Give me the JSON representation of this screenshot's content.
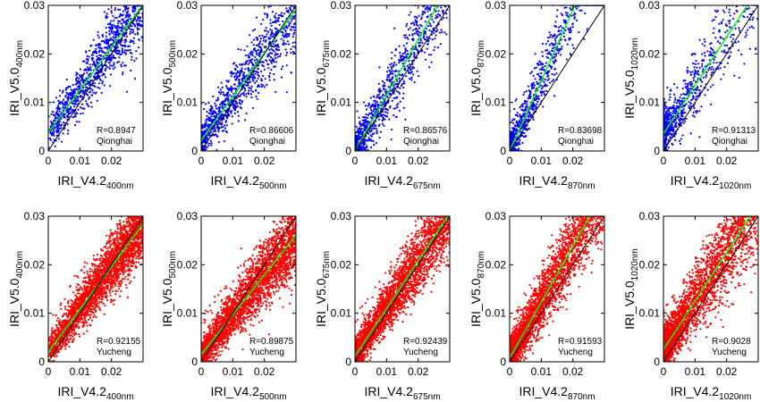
{
  "figure": {
    "panels": [
      {
        "title": "",
        "xlabel_main": "IRI_V4.2",
        "xlabel_sub": "400nm",
        "ylabel_main": "IRI_V5.0",
        "ylabel_sub": "400nm",
        "r_text": "R=0.8947",
        "site": "Qionghai",
        "color": "#0000ff"
      },
      {
        "title": "",
        "xlabel_main": "IRI_V4.2",
        "xlabel_sub": "500nm",
        "ylabel_main": "IRI_V5.0",
        "ylabel_sub": "500nm",
        "r_text": "R=0.86606",
        "site": "Qionghai",
        "color": "#0000ff"
      },
      {
        "title": "",
        "xlabel_main": "IRI_V4.2",
        "xlabel_sub": "675nm",
        "ylabel_main": "IRI_V5.0",
        "ylabel_sub": "675nm",
        "r_text": "R=0.86576",
        "site": "Qionghai",
        "color": "#0000ff"
      },
      {
        "title": "",
        "xlabel_main": "IRI_V4.2",
        "xlabel_sub": "870nm",
        "ylabel_main": "IRI_V5.0",
        "ylabel_sub": "870nm",
        "r_text": "R=0.83698",
        "site": "Qionghai",
        "color": "#0000ff"
      },
      {
        "title": "",
        "xlabel_main": "IRI_V4.2",
        "xlabel_sub": "1020nm",
        "ylabel_main": "IRI_V5.0",
        "ylabel_sub": "1020nm",
        "r_text": "R=0.91313",
        "site": "Qionghai",
        "color": "#0000ff"
      },
      {
        "title": "",
        "xlabel_main": "IRI_V4.2",
        "xlabel_sub": "400nm",
        "ylabel_main": "IRI_V5.0",
        "ylabel_sub": "400nm",
        "r_text": "R=0.92155",
        "site": "Yucheng",
        "color": "#ff0000"
      },
      {
        "title": "",
        "xlabel_main": "IRI_V4.2",
        "xlabel_sub": "500nm",
        "ylabel_main": "IRI_V5.0",
        "ylabel_sub": "500nm",
        "r_text": "R=0.89875",
        "site": "Yucheng",
        "color": "#ff0000"
      },
      {
        "title": "",
        "xlabel_main": "IRI_V4.2",
        "xlabel_sub": "675nm",
        "ylabel_main": "IRI_V5.0",
        "ylabel_sub": "675nm",
        "r_text": "R=0.92439",
        "site": "Yucheng",
        "color": "#ff0000"
      },
      {
        "title": "",
        "xlabel_main": "IRI_V4.2",
        "xlabel_sub": "870nm",
        "ylabel_main": "IRI_V5.0",
        "ylabel_sub": "870nm",
        "r_text": "R=0.91593",
        "site": "Yucheng",
        "color": "#ff0000"
      },
      {
        "title": "",
        "xlabel_main": "IRI_V4.2",
        "xlabel_sub": "1020nm",
        "ylabel_main": "IRI_V5.0",
        "ylabel_sub": "1020nm",
        "r_text": "R=0.9028",
        "site": "Yucheng",
        "color": "#ff0000"
      }
    ]
  },
  "chart_data": [
    {
      "type": "scatter",
      "site": "Qionghai",
      "wavelength": "400nm",
      "r": 0.8947,
      "point_color": "#0000ff",
      "fit_color": "#00ff00",
      "one_to_one_color": "#000000",
      "xlim": [
        0,
        0.03
      ],
      "ylim": [
        0,
        0.03
      ],
      "xticks": [
        "0",
        "0.01",
        "0.02"
      ],
      "yticks": [
        "0",
        "0.01",
        "0.02",
        "0.03"
      ],
      "fit": {
        "slope": 0.88,
        "intercept": 0.0038
      },
      "spread": 0.0028,
      "x_skew": 0.9,
      "n_points": 1100
    },
    {
      "type": "scatter",
      "site": "Qionghai",
      "wavelength": "500nm",
      "r": 0.86606,
      "point_color": "#0000ff",
      "fit_color": "#00ff00",
      "one_to_one_color": "#000000",
      "xlim": [
        0,
        0.03
      ],
      "ylim": [
        0,
        0.03
      ],
      "xticks": [
        "0",
        "0.01",
        "0.02"
      ],
      "yticks": [
        "0",
        "0.01",
        "0.02",
        "0.03"
      ],
      "fit": {
        "slope": 0.9,
        "intercept": 0.0022
      },
      "spread": 0.0028,
      "x_skew": 1.3,
      "n_points": 1100
    },
    {
      "type": "scatter",
      "site": "Qionghai",
      "wavelength": "675nm",
      "r": 0.86576,
      "point_color": "#0000ff",
      "fit_color": "#00ff00",
      "one_to_one_color": "#000000",
      "xlim": [
        0,
        0.03
      ],
      "ylim": [
        0,
        0.03
      ],
      "xticks": [
        "0",
        "0.01",
        "0.02"
      ],
      "yticks": [
        "0",
        "0.01",
        "0.02",
        "0.03"
      ],
      "fit": {
        "slope": 1.15,
        "intercept": 0.0
      },
      "spread": 0.0032,
      "x_skew": 1.6,
      "n_points": 1000
    },
    {
      "type": "scatter",
      "site": "Qionghai",
      "wavelength": "870nm",
      "r": 0.83698,
      "point_color": "#0000ff",
      "fit_color": "#00ff00",
      "one_to_one_color": "#000000",
      "xlim": [
        0,
        0.03
      ],
      "ylim": [
        0,
        0.03
      ],
      "xticks": [
        "0",
        "0.01",
        "0.02"
      ],
      "yticks": [
        "0",
        "0.01",
        "0.02",
        "0.03"
      ],
      "fit": {
        "slope": 1.45,
        "intercept": 0.0
      },
      "spread": 0.0032,
      "x_skew": 2.0,
      "n_points": 900
    },
    {
      "type": "scatter",
      "site": "Qionghai",
      "wavelength": "1020nm",
      "r": 0.91313,
      "point_color": "#0000ff",
      "fit_color": "#00ff00",
      "one_to_one_color": "#000000",
      "xlim": [
        0,
        0.03
      ],
      "ylim": [
        0,
        0.03
      ],
      "xticks": [
        "0",
        "0.01",
        "0.02"
      ],
      "yticks": [
        "0",
        "0.01",
        "0.02",
        "0.03"
      ],
      "fit": {
        "slope": 1.0,
        "intercept": 0.0035
      },
      "spread": 0.0035,
      "x_skew": 2.6,
      "n_points": 850
    },
    {
      "type": "scatter",
      "site": "Yucheng",
      "wavelength": "400nm",
      "r": 0.92155,
      "point_color": "#ff0000",
      "fit_color": "#00ff00",
      "one_to_one_color": "#000000",
      "xlim": [
        0,
        0.03
      ],
      "ylim": [
        0,
        0.03
      ],
      "xticks": [
        "0",
        "0.01",
        "0.02"
      ],
      "yticks": [
        "0",
        "0.01",
        "0.02",
        "0.03"
      ],
      "fit": {
        "slope": 0.88,
        "intercept": 0.002
      },
      "spread": 0.0022,
      "x_skew": 0.8,
      "n_points": 3000
    },
    {
      "type": "scatter",
      "site": "Yucheng",
      "wavelength": "500nm",
      "r": 0.89875,
      "point_color": "#ff0000",
      "fit_color": "#00ff00",
      "one_to_one_color": "#000000",
      "xlim": [
        0,
        0.03
      ],
      "ylim": [
        0,
        0.03
      ],
      "xticks": [
        "0",
        "0.01",
        "0.02"
      ],
      "yticks": [
        "0",
        "0.01",
        "0.02",
        "0.03"
      ],
      "fit": {
        "slope": 0.82,
        "intercept": 0.0015
      },
      "spread": 0.0026,
      "x_skew": 1.0,
      "n_points": 3000
    },
    {
      "type": "scatter",
      "site": "Yucheng",
      "wavelength": "675nm",
      "r": 0.92439,
      "point_color": "#ff0000",
      "fit_color": "#00ff00",
      "one_to_one_color": "#000000",
      "xlim": [
        0,
        0.03
      ],
      "ylim": [
        0,
        0.03
      ],
      "xticks": [
        "0",
        "0.01",
        "0.02"
      ],
      "yticks": [
        "0",
        "0.01",
        "0.02",
        "0.03"
      ],
      "fit": {
        "slope": 0.98,
        "intercept": 0.0012
      },
      "spread": 0.0026,
      "x_skew": 1.2,
      "n_points": 3000
    },
    {
      "type": "scatter",
      "site": "Yucheng",
      "wavelength": "870nm",
      "r": 0.91593,
      "point_color": "#ff0000",
      "fit_color": "#00ff00",
      "one_to_one_color": "#000000",
      "xlim": [
        0,
        0.03
      ],
      "ylim": [
        0,
        0.03
      ],
      "xticks": [
        "0",
        "0.01",
        "0.02"
      ],
      "yticks": [
        "0",
        "0.01",
        "0.02",
        "0.03"
      ],
      "fit": {
        "slope": 1.15,
        "intercept": 0.0008
      },
      "spread": 0.003,
      "x_skew": 1.5,
      "n_points": 3000
    },
    {
      "type": "scatter",
      "site": "Yucheng",
      "wavelength": "1020nm",
      "r": 0.9028,
      "point_color": "#ff0000",
      "fit_color": "#00ff00",
      "one_to_one_color": "#000000",
      "xlim": [
        0,
        0.03
      ],
      "ylim": [
        0,
        0.03
      ],
      "xticks": [
        "0",
        "0.01",
        "0.02"
      ],
      "yticks": [
        "0",
        "0.01",
        "0.02",
        "0.03"
      ],
      "fit": {
        "slope": 1.0,
        "intercept": 0.0025
      },
      "spread": 0.0035,
      "x_skew": 1.8,
      "n_points": 3000
    }
  ]
}
